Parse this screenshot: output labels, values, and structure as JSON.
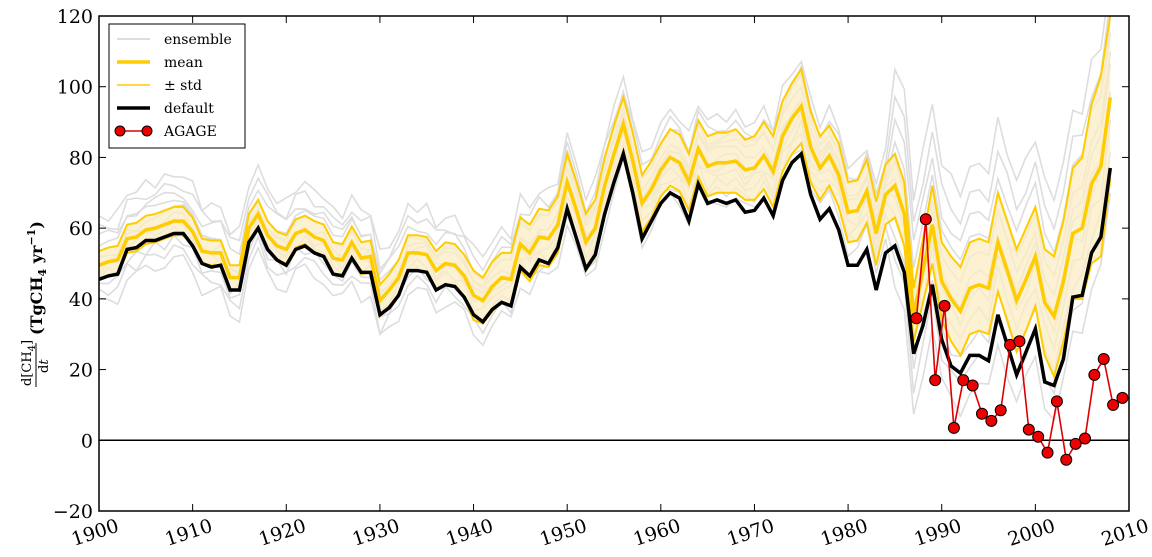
{
  "chart_data": {
    "type": "line",
    "ylabel": {
      "fraction_numerator": "d[CH",
      "fraction_numerator_sub": "4",
      "fraction_numerator_end": "]",
      "fraction_denominator": "d",
      "fraction_denominator_var": "t",
      "units_open": "(TgCH",
      "units_sub": "4",
      "units_mid": " yr",
      "units_sup": "−1",
      "units_close": ")"
    },
    "xlim": [
      1900,
      2010
    ],
    "ylim": [
      -20,
      120
    ],
    "x_ticks": [
      1900,
      1910,
      1920,
      1930,
      1940,
      1950,
      1960,
      1970,
      1980,
      1990,
      2000,
      2010
    ],
    "y_ticks": [
      -20,
      0,
      20,
      40,
      60,
      80,
      100,
      120
    ],
    "y_tick_labels": [
      "−20",
      "0",
      "20",
      "40",
      "60",
      "80",
      "100",
      "120"
    ],
    "zero_line": 0,
    "grid": false,
    "legend": {
      "position": "top-left",
      "entries": [
        {
          "label": "ensemble",
          "style": "ensemble"
        },
        {
          "label": "mean",
          "style": "mean"
        },
        {
          "label": "± std",
          "style": "std"
        },
        {
          "label": "default",
          "style": "default"
        },
        {
          "label": "AGAGE",
          "style": "agage"
        }
      ]
    },
    "colors": {
      "ensemble": "#dddddd",
      "mean": "#ffcc00",
      "std_line": "#ffcc00",
      "std_fill": "#fbecc4",
      "default": "#000000",
      "agage_line": "#dd0000",
      "agage_marker": "#ee0000"
    },
    "years": [
      1900,
      1901,
      1902,
      1903,
      1904,
      1905,
      1906,
      1907,
      1908,
      1909,
      1910,
      1911,
      1912,
      1913,
      1914,
      1915,
      1916,
      1917,
      1918,
      1919,
      1920,
      1921,
      1922,
      1923,
      1924,
      1925,
      1926,
      1927,
      1928,
      1929,
      1930,
      1931,
      1932,
      1933,
      1934,
      1935,
      1936,
      1937,
      1938,
      1939,
      1940,
      1941,
      1942,
      1943,
      1944,
      1945,
      1946,
      1947,
      1948,
      1949,
      1950,
      1951,
      1952,
      1953,
      1954,
      1955,
      1956,
      1957,
      1958,
      1959,
      1960,
      1961,
      1962,
      1963,
      1964,
      1965,
      1966,
      1967,
      1968,
      1969,
      1970,
      1971,
      1972,
      1973,
      1974,
      1975,
      1976,
      1977,
      1978,
      1979,
      1980,
      1981,
      1982,
      1983,
      1984,
      1985,
      1986,
      1987,
      1988,
      1989,
      1990,
      1991,
      1992,
      1993,
      1994,
      1995,
      1996,
      1997,
      1998,
      1999,
      2000,
      2001,
      2002,
      2003,
      2004,
      2005,
      2006,
      2007,
      2008
    ],
    "series": [
      {
        "name": "default",
        "values": [
          45.5,
          46.5,
          47,
          54,
          54.5,
          56.5,
          56.5,
          57.5,
          58.5,
          58.5,
          55,
          50,
          49,
          49.5,
          42.5,
          42.5,
          56,
          60,
          54,
          51,
          49.5,
          54,
          55,
          53,
          52,
          47,
          46.5,
          51.5,
          47.5,
          47.5,
          35.5,
          37.5,
          41,
          48,
          48,
          47.5,
          42.5,
          44,
          43.5,
          40.5,
          35.5,
          33.5,
          37,
          39,
          38,
          49,
          46.5,
          51,
          50,
          54.5,
          65.5,
          57,
          48.5,
          52.5,
          64,
          73,
          81,
          70,
          57,
          62,
          67,
          70,
          68.5,
          62,
          72.5,
          67,
          68,
          67,
          68,
          64.5,
          65,
          68.5,
          63.5,
          73.5,
          78.5,
          81,
          69.5,
          62.5,
          65.5,
          59.5,
          49.5,
          49.5,
          54,
          42.5,
          53,
          55,
          47.5,
          24.5,
          32.5,
          44,
          28.5,
          21,
          19,
          24,
          24,
          22.5,
          35.5,
          27,
          18.5,
          25,
          31.5,
          16.5,
          15.5,
          23,
          40.5,
          41,
          53,
          57.5,
          77
        ]
      },
      {
        "name": "mean",
        "values": [
          49.5,
          50.5,
          51,
          57,
          57.5,
          59.5,
          60,
          61,
          62,
          62,
          59,
          53.5,
          53,
          53,
          46,
          46,
          60,
          64,
          58,
          55,
          54,
          58.5,
          59.5,
          57.5,
          56.5,
          51.5,
          51,
          56,
          51.5,
          52,
          39.5,
          42.5,
          46,
          53,
          53,
          52.5,
          48,
          50,
          49.5,
          46.5,
          41,
          39.5,
          43.5,
          46,
          45.5,
          55.5,
          53,
          57.5,
          57,
          61,
          73,
          65,
          56,
          60,
          72,
          81,
          89.5,
          79,
          67,
          71,
          76.5,
          80,
          78.5,
          73,
          82.5,
          77.5,
          78.5,
          78.5,
          79,
          76.5,
          77,
          80.5,
          76,
          86,
          91,
          94.5,
          83,
          77,
          80.5,
          75,
          64.5,
          65,
          70.5,
          58.5,
          69.5,
          72,
          64,
          35.5,
          48,
          61,
          45,
          40,
          36.5,
          43,
          44,
          43,
          56,
          48,
          39.5,
          45.5,
          52,
          39,
          35,
          45,
          58.5,
          60,
          72.5,
          77.5,
          97
        ]
      },
      {
        "name": "+ std",
        "values": [
          53.5,
          54.5,
          55,
          61,
          61.5,
          63.5,
          64,
          65,
          66,
          66,
          63,
          57,
          56.5,
          56.5,
          49.5,
          49.5,
          64,
          68,
          62,
          59,
          58,
          62.5,
          63.5,
          62,
          61,
          56,
          55.5,
          60.5,
          56,
          56.5,
          44,
          47,
          51,
          58,
          58,
          57.5,
          53.5,
          56,
          55.5,
          52.5,
          48,
          46,
          50.5,
          53,
          53,
          63,
          61,
          65.5,
          65,
          69,
          81,
          73,
          64,
          68,
          80,
          89,
          97,
          87,
          75,
          79,
          84,
          88,
          86.5,
          81,
          90.5,
          86,
          87,
          87,
          88,
          85,
          86,
          90,
          86,
          96,
          101,
          105,
          93,
          86,
          89,
          84,
          73,
          73.5,
          79.5,
          67.5,
          78,
          81,
          73,
          43,
          57,
          72,
          56,
          52,
          49,
          56,
          57,
          56,
          70,
          62,
          54,
          60,
          66,
          54,
          52,
          62,
          77,
          80,
          95,
          103,
          120
        ]
      },
      {
        "name": "- std",
        "values": [
          45.5,
          46.5,
          47,
          53,
          53.5,
          55.5,
          56,
          57,
          58,
          58,
          55,
          50,
          49.5,
          49.5,
          42.5,
          42.5,
          56,
          60,
          54,
          51,
          50,
          54.5,
          55.5,
          53,
          52,
          47,
          46.5,
          51.5,
          47,
          47.5,
          35,
          38,
          41,
          48,
          48,
          47.5,
          42.5,
          44,
          43.5,
          40.5,
          34,
          33,
          36.5,
          39,
          38,
          48,
          45,
          49.5,
          49,
          53,
          65,
          57,
          48,
          52,
          64,
          73,
          82,
          71,
          59,
          63,
          69,
          72,
          70.5,
          65,
          74.5,
          69,
          70,
          70,
          70,
          68,
          68,
          71,
          66,
          76,
          81,
          84,
          73,
          68,
          72,
          66,
          56,
          56.5,
          61.5,
          49.5,
          61,
          63,
          55,
          28,
          39,
          50,
          34,
          28,
          24,
          30,
          31,
          30,
          42,
          34,
          25,
          31,
          38,
          24,
          18,
          28,
          40,
          40,
          50,
          52,
          74
        ]
      },
      {
        "name": "AGAGE",
        "years": [
          1987.3,
          1988.3,
          1989.3,
          1990.3,
          1991.3,
          1992.3,
          1993.3,
          1994.3,
          1995.3,
          1996.3,
          1997.3,
          1998.3,
          1999.3,
          2000.3,
          2001.3,
          2002.3,
          2003.3,
          2004.3,
          2005.3,
          2006.3,
          2007.3,
          2008.3,
          2009.3
        ],
        "values": [
          34.5,
          62.5,
          17,
          38,
          3.5,
          17,
          15.5,
          7.5,
          5.5,
          8.5,
          27,
          28,
          3,
          1,
          -3.5,
          11,
          -5.5,
          -1,
          0.5,
          18.5,
          23,
          10,
          12
        ]
      }
    ],
    "ensemble_offsets": [
      -11,
      -8,
      -5.5,
      -3,
      -1,
      1,
      3,
      5,
      7.5,
      10,
      13
    ],
    "ensemble_spread_by_decade": [
      {
        "from": 1900,
        "to": 1985,
        "scale": 1.0
      },
      {
        "from": 1985,
        "to": 2009,
        "scale": 2.6
      }
    ]
  }
}
